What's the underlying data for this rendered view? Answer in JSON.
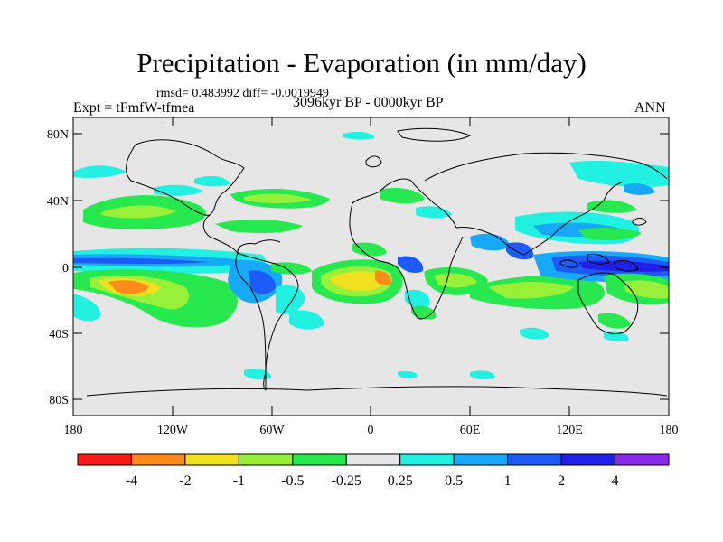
{
  "title": "Precipitation - Evaporation (in mm/day)",
  "stats": "rmsd= 0.483992 diff= -0.0019949",
  "experiment": "Expt = tFmfW-tfmea",
  "period": "3096kyr BP - 0000kyr BP",
  "season": "ANN",
  "lat_ticks": [
    "80N",
    "40N",
    "0",
    "40S",
    "80S"
  ],
  "lon_ticks": [
    "180",
    "120W",
    "60W",
    "0",
    "60E",
    "120E",
    "180"
  ],
  "colorbar": {
    "labels": [
      "-4",
      "-2",
      "-1",
      "-0.5",
      "-0.25",
      "0.25",
      "0.5",
      "1",
      "2",
      "4"
    ],
    "colors": [
      "#ff1a1a",
      "#ff8c1a",
      "#f0e020",
      "#98f038",
      "#28e850",
      "#e6e6e6",
      "#22f0e0",
      "#18a8f8",
      "#1e5af8",
      "#2020e8",
      "#8a2ae8"
    ]
  },
  "land_color": "#e6e6e6"
}
